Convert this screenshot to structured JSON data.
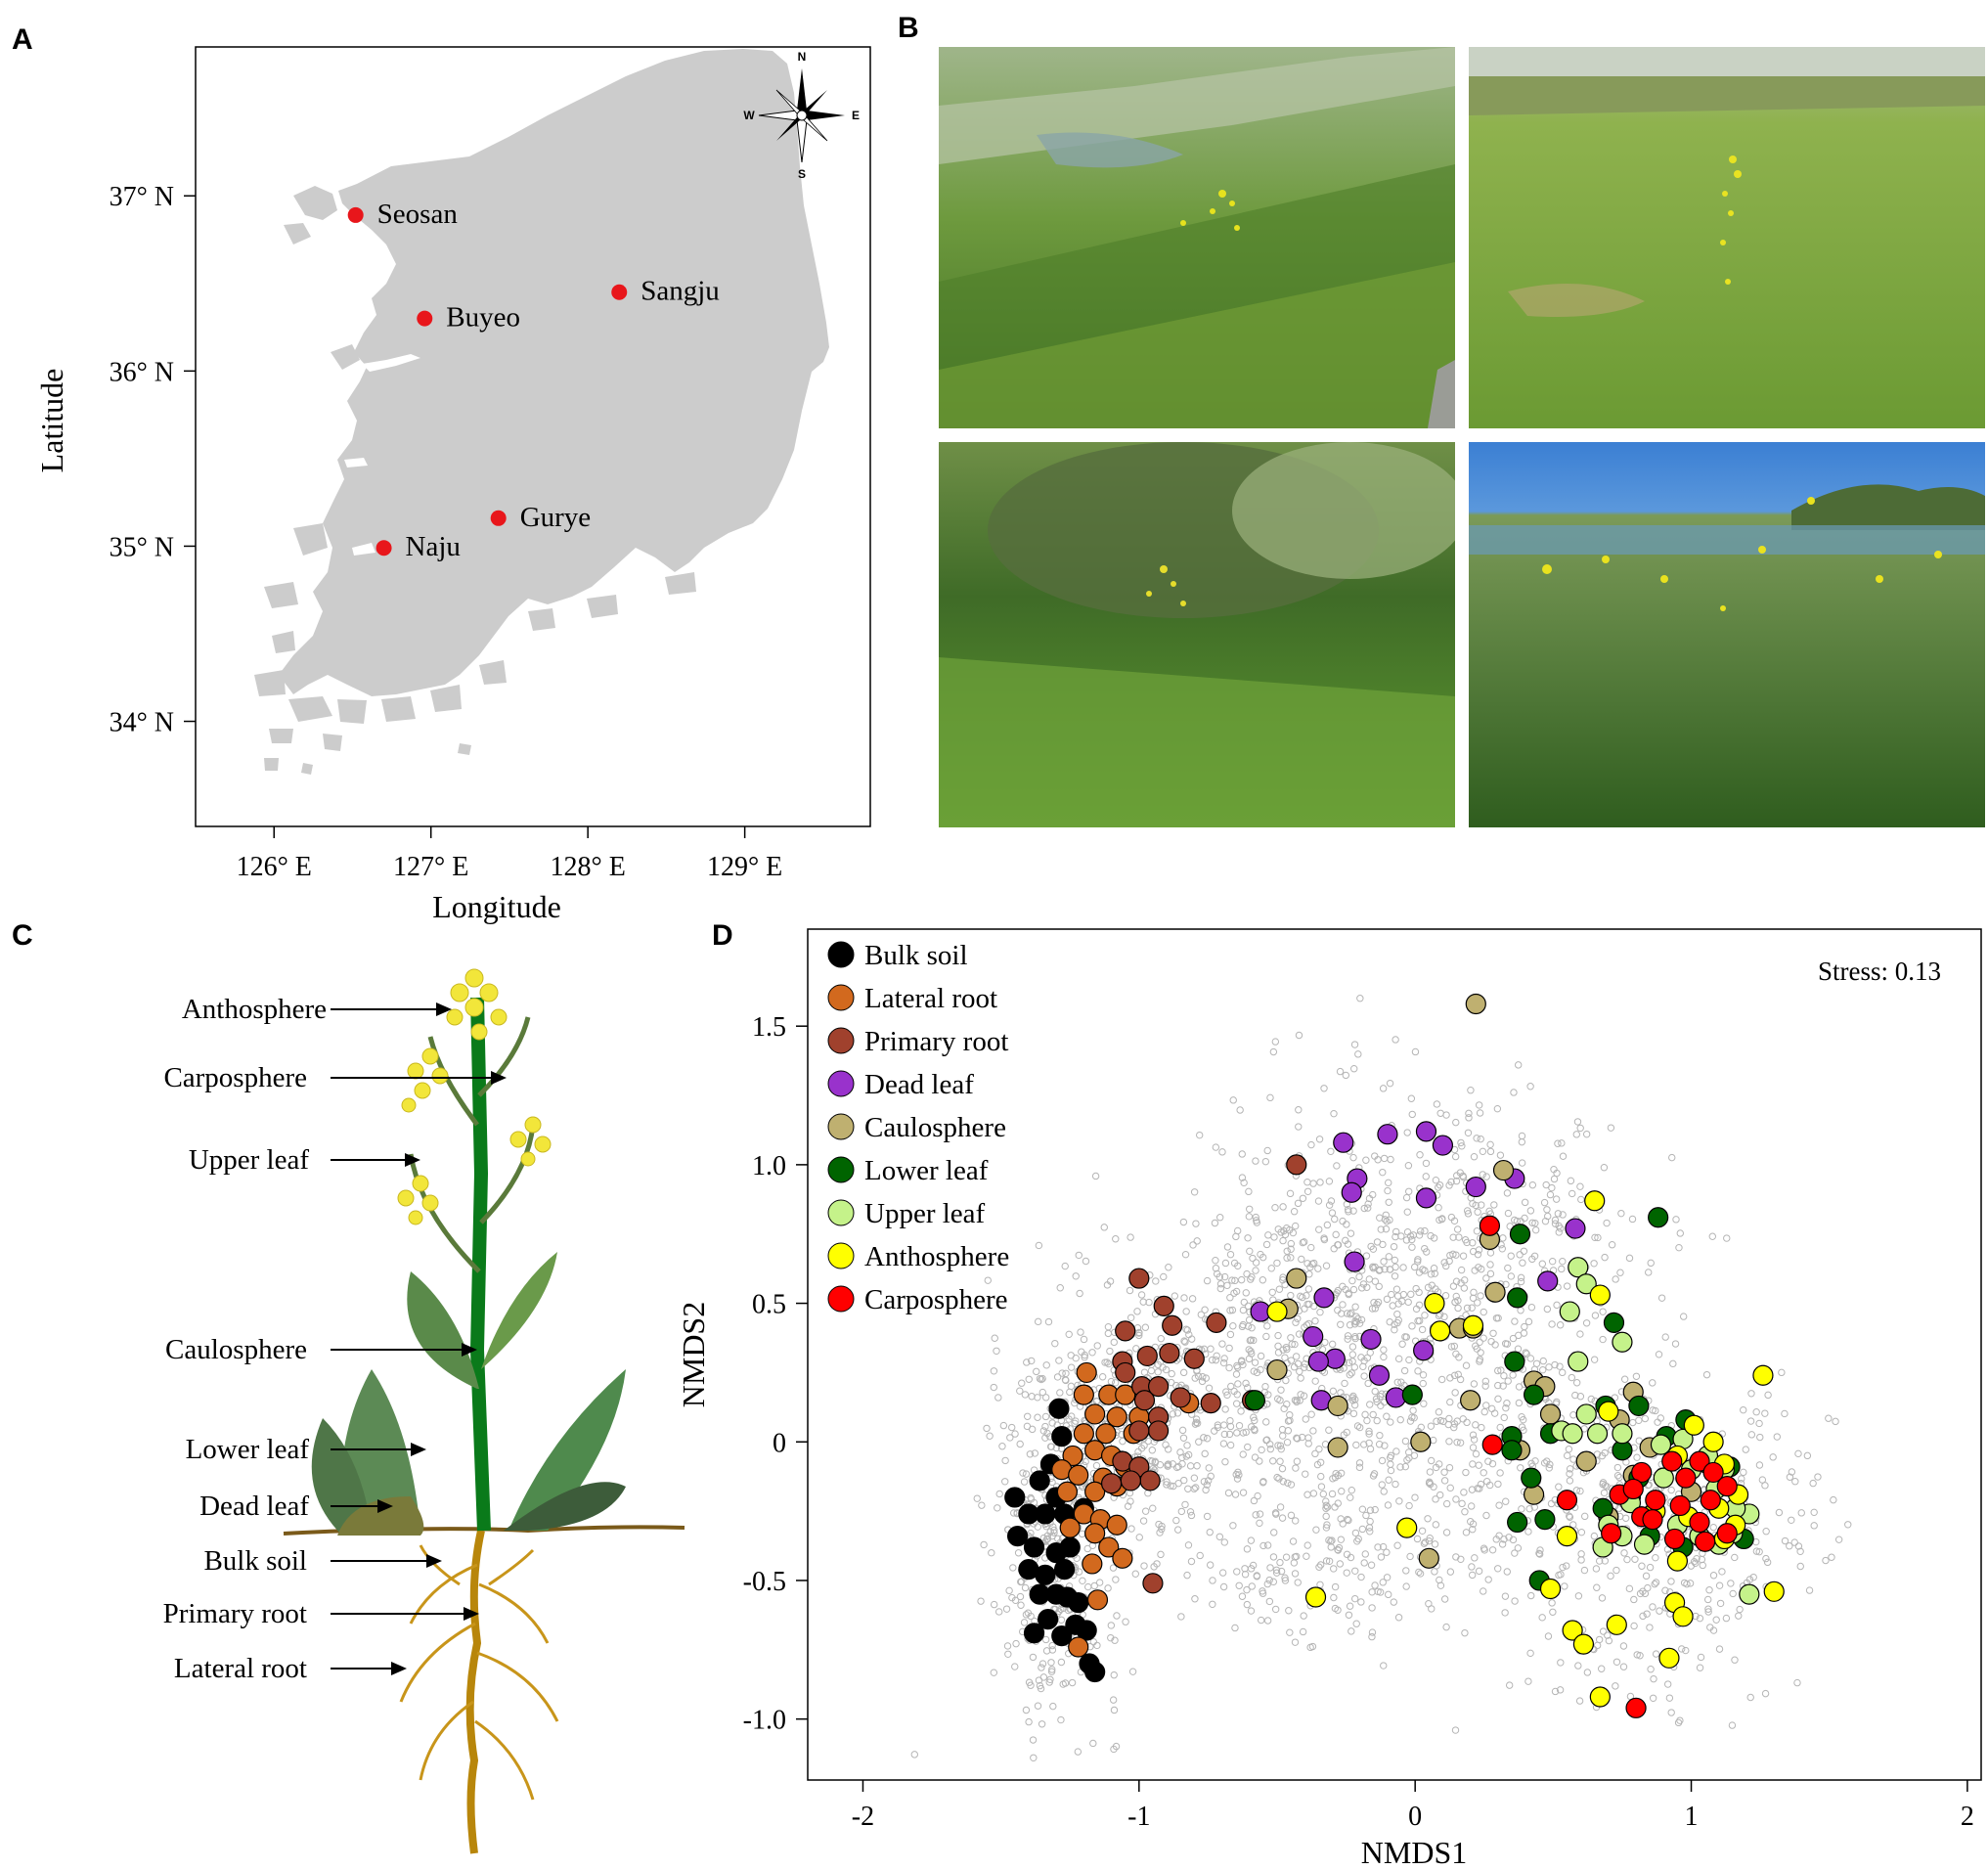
{
  "panels": {
    "a": "A",
    "b": "B",
    "c": "C",
    "d": "D"
  },
  "map": {
    "xlabel": "Longitude",
    "ylabel": "Latitude",
    "lon_range": [
      125.5,
      129.8
    ],
    "lat_range": [
      33.4,
      37.85
    ],
    "x_ticks": [
      {
        "v": 126,
        "label": "126° E"
      },
      {
        "v": 127,
        "label": "127° E"
      },
      {
        "v": 128,
        "label": "128° E"
      },
      {
        "v": 129,
        "label": "129° E"
      }
    ],
    "y_ticks": [
      {
        "v": 37,
        "label": "37° N"
      },
      {
        "v": 36,
        "label": "36° N"
      },
      {
        "v": 35,
        "label": "35° N"
      },
      {
        "v": 34,
        "label": "34° N"
      }
    ],
    "land_color": "#cccccc",
    "site_color": "#e8161b",
    "sites": [
      {
        "name": "Seosan",
        "lon": 126.52,
        "lat": 36.89
      },
      {
        "name": "Buyeo",
        "lon": 126.96,
        "lat": 36.3
      },
      {
        "name": "Sangju",
        "lon": 128.2,
        "lat": 36.45
      },
      {
        "name": "Gurye",
        "lon": 127.43,
        "lat": 35.16
      },
      {
        "name": "Naju",
        "lon": 126.7,
        "lat": 34.99
      }
    ],
    "compass": {
      "n": "N",
      "s": "S",
      "e": "E",
      "w": "W"
    }
  },
  "plant": {
    "labels": [
      "Anthosphere",
      "Carposphere",
      "Upper leaf",
      "Caulosphere",
      "Lower leaf",
      "Dead leaf",
      "Bulk soil",
      "Primary root",
      "Lateral root"
    ]
  },
  "chart_data": {
    "type": "scatter",
    "title": "",
    "xlabel": "NMDS1",
    "ylabel": "NMDS2",
    "xlim": [
      -2.2,
      2.05
    ],
    "ylim": [
      -1.22,
      1.85
    ],
    "x_ticks": [
      -2,
      -1,
      0,
      1,
      2
    ],
    "y_ticks": [
      {
        "v": 1.5,
        "label": "1.5"
      },
      {
        "v": 1.0,
        "label": "1.0"
      },
      {
        "v": 0.5,
        "label": "0.5"
      },
      {
        "v": 0,
        "label": "0"
      },
      {
        "v": -0.5,
        "label": "-0.5"
      },
      {
        "v": -1.0,
        "label": "-1.0"
      }
    ],
    "annotation": "Stress: 0.13",
    "legend_position": "top-left",
    "background_points_color": "#b5b5b5",
    "series": [
      {
        "name": "Bulk soil",
        "color": "#000000",
        "points": [
          [
            -1.29,
            0.12
          ],
          [
            -1.28,
            0.02
          ],
          [
            -1.32,
            -0.08
          ],
          [
            -1.36,
            -0.14
          ],
          [
            -1.3,
            -0.2
          ],
          [
            -1.45,
            -0.2
          ],
          [
            -1.4,
            -0.26
          ],
          [
            -1.34,
            -0.26
          ],
          [
            -1.27,
            -0.26
          ],
          [
            -1.2,
            -0.24
          ],
          [
            -1.44,
            -0.34
          ],
          [
            -1.38,
            -0.38
          ],
          [
            -1.3,
            -0.4
          ],
          [
            -1.25,
            -0.38
          ],
          [
            -1.4,
            -0.46
          ],
          [
            -1.34,
            -0.48
          ],
          [
            -1.27,
            -0.46
          ],
          [
            -1.36,
            -0.55
          ],
          [
            -1.3,
            -0.55
          ],
          [
            -1.26,
            -0.56
          ],
          [
            -1.22,
            -0.58
          ],
          [
            -1.33,
            -0.64
          ],
          [
            -1.23,
            -0.66
          ],
          [
            -1.38,
            -0.69
          ],
          [
            -1.28,
            -0.7
          ],
          [
            -1.19,
            -0.68
          ],
          [
            -1.18,
            -0.8
          ],
          [
            -1.16,
            -0.83
          ]
        ]
      },
      {
        "name": "Lateral root",
        "color": "#d2691e",
        "points": [
          [
            -1.19,
            0.25
          ],
          [
            -1.2,
            0.17
          ],
          [
            -1.11,
            0.17
          ],
          [
            -1.05,
            0.17
          ],
          [
            -1.16,
            0.1
          ],
          [
            -1.08,
            0.09
          ],
          [
            -1.0,
            0.09
          ],
          [
            -1.2,
            0.03
          ],
          [
            -1.12,
            0.03
          ],
          [
            -1.02,
            0.03
          ],
          [
            -1.24,
            -0.05
          ],
          [
            -1.16,
            -0.03
          ],
          [
            -1.1,
            -0.05
          ],
          [
            -1.05,
            -0.09
          ],
          [
            -1.28,
            -0.1
          ],
          [
            -1.22,
            -0.12
          ],
          [
            -1.13,
            -0.13
          ],
          [
            -1.08,
            -0.16
          ],
          [
            -1.26,
            -0.18
          ],
          [
            -1.16,
            -0.18
          ],
          [
            -1.2,
            -0.26
          ],
          [
            -1.14,
            -0.28
          ],
          [
            -1.08,
            -0.3
          ],
          [
            -1.16,
            -0.33
          ],
          [
            -1.11,
            -0.38
          ],
          [
            -1.06,
            -0.42
          ],
          [
            -1.17,
            -0.44
          ],
          [
            -1.15,
            -0.57
          ],
          [
            -1.22,
            -0.74
          ],
          [
            -1.25,
            -0.31
          ],
          [
            -0.82,
            0.14
          ]
        ]
      },
      {
        "name": "Primary root",
        "color": "#a0412d",
        "points": [
          [
            -1.0,
            0.59
          ],
          [
            -0.91,
            0.49
          ],
          [
            -0.88,
            0.42
          ],
          [
            -0.72,
            0.43
          ],
          [
            -1.05,
            0.4
          ],
          [
            -0.97,
            0.31
          ],
          [
            -0.89,
            0.32
          ],
          [
            -0.8,
            0.3
          ],
          [
            -1.06,
            0.29
          ],
          [
            -0.99,
            0.2
          ],
          [
            -0.93,
            0.2
          ],
          [
            -0.85,
            0.16
          ],
          [
            -1.05,
            0.25
          ],
          [
            -0.98,
            0.15
          ],
          [
            -0.93,
            0.09
          ],
          [
            -0.93,
            0.04
          ],
          [
            -1.0,
            0.04
          ],
          [
            -1.06,
            -0.07
          ],
          [
            -1.0,
            -0.09
          ],
          [
            -0.96,
            -0.14
          ],
          [
            -1.03,
            -0.14
          ],
          [
            -1.1,
            -0.15
          ],
          [
            -0.74,
            0.14
          ],
          [
            -0.59,
            0.15
          ],
          [
            -0.43,
            1.0
          ],
          [
            -0.95,
            -0.51
          ]
        ]
      },
      {
        "name": "Dead leaf",
        "color": "#9932cc",
        "points": [
          [
            -0.26,
            1.08
          ],
          [
            -0.1,
            1.11
          ],
          [
            0.04,
            1.12
          ],
          [
            0.1,
            1.07
          ],
          [
            -0.21,
            0.95
          ],
          [
            -0.23,
            0.9
          ],
          [
            0.04,
            0.88
          ],
          [
            0.22,
            0.92
          ],
          [
            0.36,
            0.95
          ],
          [
            0.58,
            0.77
          ],
          [
            -0.22,
            0.65
          ],
          [
            0.48,
            0.58
          ],
          [
            -0.33,
            0.52
          ],
          [
            -0.56,
            0.47
          ],
          [
            -0.37,
            0.38
          ],
          [
            -0.16,
            0.37
          ],
          [
            -0.29,
            0.3
          ],
          [
            -0.35,
            0.29
          ],
          [
            -0.13,
            0.24
          ],
          [
            0.03,
            0.33
          ],
          [
            -0.07,
            0.16
          ],
          [
            -0.34,
            0.15
          ]
        ]
      },
      {
        "name": "Caulosphere",
        "color": "#bfb070",
        "points": [
          [
            0.22,
            1.58
          ],
          [
            0.32,
            0.98
          ],
          [
            0.27,
            0.73
          ],
          [
            -0.43,
            0.59
          ],
          [
            0.29,
            0.54
          ],
          [
            -0.46,
            0.48
          ],
          [
            0.16,
            0.41
          ],
          [
            0.21,
            0.41
          ],
          [
            -0.5,
            0.26
          ],
          [
            0.43,
            0.22
          ],
          [
            0.47,
            0.2
          ],
          [
            0.79,
            0.18
          ],
          [
            0.2,
            0.15
          ],
          [
            -0.28,
            0.13
          ],
          [
            0.49,
            0.1
          ],
          [
            0.74,
            0.08
          ],
          [
            0.02,
            0.0
          ],
          [
            -0.28,
            -0.02
          ],
          [
            0.85,
            -0.02
          ],
          [
            0.38,
            -0.03
          ],
          [
            0.62,
            -0.07
          ],
          [
            0.43,
            -0.19
          ],
          [
            0.7,
            -0.27
          ],
          [
            0.05,
            -0.42
          ],
          [
            0.79,
            -0.12
          ],
          [
            1.0,
            -0.18
          ]
        ]
      },
      {
        "name": "Lower leaf",
        "color": "#006400",
        "points": [
          [
            0.88,
            0.81
          ],
          [
            0.38,
            0.75
          ],
          [
            0.37,
            0.52
          ],
          [
            0.72,
            0.43
          ],
          [
            0.36,
            0.29
          ],
          [
            0.43,
            0.17
          ],
          [
            0.69,
            0.13
          ],
          [
            0.81,
            0.13
          ],
          [
            -0.58,
            0.15
          ],
          [
            -0.01,
            0.17
          ],
          [
            0.98,
            0.08
          ],
          [
            0.91,
            0.02
          ],
          [
            0.35,
            0.02
          ],
          [
            0.49,
            0.03
          ],
          [
            0.35,
            -0.03
          ],
          [
            0.75,
            -0.03
          ],
          [
            0.81,
            -0.13
          ],
          [
            0.42,
            -0.13
          ],
          [
            1.06,
            -0.08
          ],
          [
            1.14,
            -0.09
          ],
          [
            0.47,
            -0.28
          ],
          [
            0.37,
            -0.29
          ],
          [
            0.78,
            -0.2
          ],
          [
            0.85,
            -0.34
          ],
          [
            1.19,
            -0.35
          ],
          [
            0.97,
            -0.38
          ],
          [
            0.45,
            -0.5
          ],
          [
            0.68,
            -0.24
          ]
        ]
      },
      {
        "name": "Upper leaf",
        "color": "#c5f28a",
        "points": [
          [
            0.59,
            0.63
          ],
          [
            0.62,
            0.57
          ],
          [
            0.56,
            0.47
          ],
          [
            0.75,
            0.36
          ],
          [
            0.59,
            0.29
          ],
          [
            0.62,
            0.1
          ],
          [
            0.53,
            0.04
          ],
          [
            0.57,
            0.03
          ],
          [
            0.66,
            0.03
          ],
          [
            0.75,
            0.03
          ],
          [
            0.97,
            0.01
          ],
          [
            0.89,
            -0.01
          ],
          [
            1.06,
            -0.05
          ],
          [
            1.12,
            -0.1
          ],
          [
            1.0,
            -0.1
          ],
          [
            0.9,
            -0.13
          ],
          [
            1.09,
            -0.17
          ],
          [
            0.78,
            -0.22
          ],
          [
            0.7,
            -0.3
          ],
          [
            0.75,
            -0.34
          ],
          [
            0.83,
            -0.37
          ],
          [
            1.15,
            -0.33
          ],
          [
            1.21,
            -0.26
          ],
          [
            1.16,
            -0.24
          ],
          [
            1.03,
            -0.34
          ],
          [
            0.68,
            -0.38
          ],
          [
            1.21,
            -0.55
          ],
          [
            1.1,
            -0.37
          ],
          [
            0.95,
            -0.3
          ],
          [
            0.86,
            -0.26
          ]
        ]
      },
      {
        "name": "Anthosphere",
        "color": "#ffff00",
        "points": [
          [
            0.65,
            0.87
          ],
          [
            0.67,
            0.53
          ],
          [
            -0.5,
            0.47
          ],
          [
            0.07,
            0.5
          ],
          [
            0.09,
            0.4
          ],
          [
            0.21,
            0.42
          ],
          [
            1.26,
            0.24
          ],
          [
            0.7,
            0.11
          ],
          [
            1.01,
            0.06
          ],
          [
            1.08,
            0.0
          ],
          [
            0.95,
            -0.05
          ],
          [
            1.12,
            -0.08
          ],
          [
            1.17,
            -0.19
          ],
          [
            1.1,
            -0.24
          ],
          [
            0.87,
            -0.25
          ],
          [
            0.99,
            -0.27
          ],
          [
            0.95,
            -0.43
          ],
          [
            0.55,
            -0.34
          ],
          [
            -0.03,
            -0.31
          ],
          [
            -0.36,
            -0.56
          ],
          [
            0.49,
            -0.53
          ],
          [
            0.57,
            -0.68
          ],
          [
            0.61,
            -0.73
          ],
          [
            0.73,
            -0.66
          ],
          [
            0.94,
            -0.58
          ],
          [
            0.97,
            -0.63
          ],
          [
            1.3,
            -0.54
          ],
          [
            0.92,
            -0.78
          ],
          [
            0.67,
            -0.92
          ],
          [
            1.16,
            -0.3
          ],
          [
            1.12,
            -0.35
          ]
        ]
      },
      {
        "name": "Carposphere",
        "color": "#ff0000",
        "points": [
          [
            0.27,
            0.78
          ],
          [
            0.28,
            -0.01
          ],
          [
            0.71,
            -0.33
          ],
          [
            0.55,
            -0.21
          ],
          [
            0.74,
            -0.19
          ],
          [
            0.82,
            -0.11
          ],
          [
            0.93,
            -0.07
          ],
          [
            1.03,
            -0.07
          ],
          [
            1.08,
            -0.11
          ],
          [
            1.13,
            -0.16
          ],
          [
            0.79,
            -0.17
          ],
          [
            0.87,
            -0.21
          ],
          [
            0.96,
            -0.23
          ],
          [
            1.07,
            -0.21
          ],
          [
            0.82,
            -0.27
          ],
          [
            1.03,
            -0.29
          ],
          [
            1.13,
            -0.33
          ],
          [
            0.94,
            -0.35
          ],
          [
            1.05,
            -0.36
          ],
          [
            0.86,
            -0.28
          ],
          [
            0.8,
            -0.96
          ],
          [
            0.98,
            -0.13
          ]
        ]
      }
    ]
  },
  "photos": [
    {
      "description_hidden": true
    },
    {
      "description_hidden": true
    },
    {
      "description_hidden": true
    },
    {
      "description_hidden": true
    }
  ]
}
